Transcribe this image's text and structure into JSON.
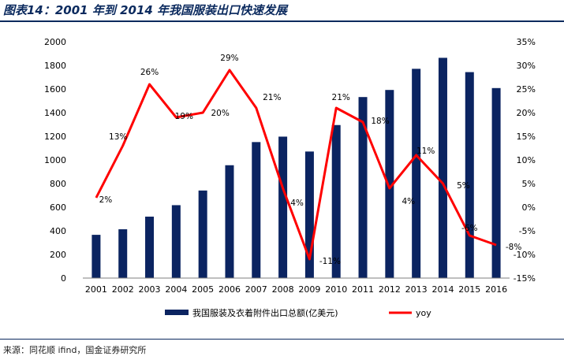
{
  "title": "图表14：2001 年到 2014 年我国服装出口快速发展",
  "source": "来源：同花顺 ifind，国金证券研究所",
  "colors": {
    "bar": "#0b2461",
    "line": "#ff0000",
    "title": "#0b2a5e"
  },
  "chart_data": {
    "type": "bar",
    "categories": [
      "2001",
      "2002",
      "2003",
      "2004",
      "2005",
      "2006",
      "2007",
      "2008",
      "2009",
      "2010",
      "2011",
      "2012",
      "2013",
      "2014",
      "2015",
      "2016"
    ],
    "series": [
      {
        "name": "我国服装及衣着附件出口总额(亿美元)",
        "type": "bar",
        "axis": "left",
        "values": [
          366,
          413,
          520,
          617,
          741,
          955,
          1151,
          1197,
          1071,
          1295,
          1532,
          1592,
          1771,
          1864,
          1743,
          1608
        ]
      },
      {
        "name": "yoy",
        "type": "line",
        "axis": "right",
        "values": [
          2,
          13,
          26,
          19,
          20,
          29,
          21,
          4,
          -11,
          21,
          18,
          4,
          11,
          5,
          -6,
          -8
        ]
      }
    ],
    "data_labels": [
      "2%",
      "13%",
      "26%",
      "19%",
      "20%",
      "29%",
      "21%",
      "4%",
      "-11%",
      "21%",
      "18%",
      "4%",
      "11%",
      "5%",
      "-6%",
      "-8%"
    ],
    "y_left": {
      "min": 0,
      "max": 2000,
      "step": 200,
      "ticks": [
        "0",
        "200",
        "400",
        "600",
        "800",
        "1000",
        "1200",
        "1400",
        "1600",
        "1800",
        "2000"
      ]
    },
    "y_right": {
      "min": -15,
      "max": 35,
      "step": 5,
      "ticks": [
        "-15%",
        "-10%",
        "-5%",
        "0%",
        "5%",
        "10%",
        "15%",
        "20%",
        "25%",
        "30%",
        "35%"
      ]
    },
    "legend": {
      "position": "bottom",
      "items": [
        "我国服装及衣着附件出口总额(亿美元)",
        "yoy"
      ]
    },
    "grid": false
  }
}
